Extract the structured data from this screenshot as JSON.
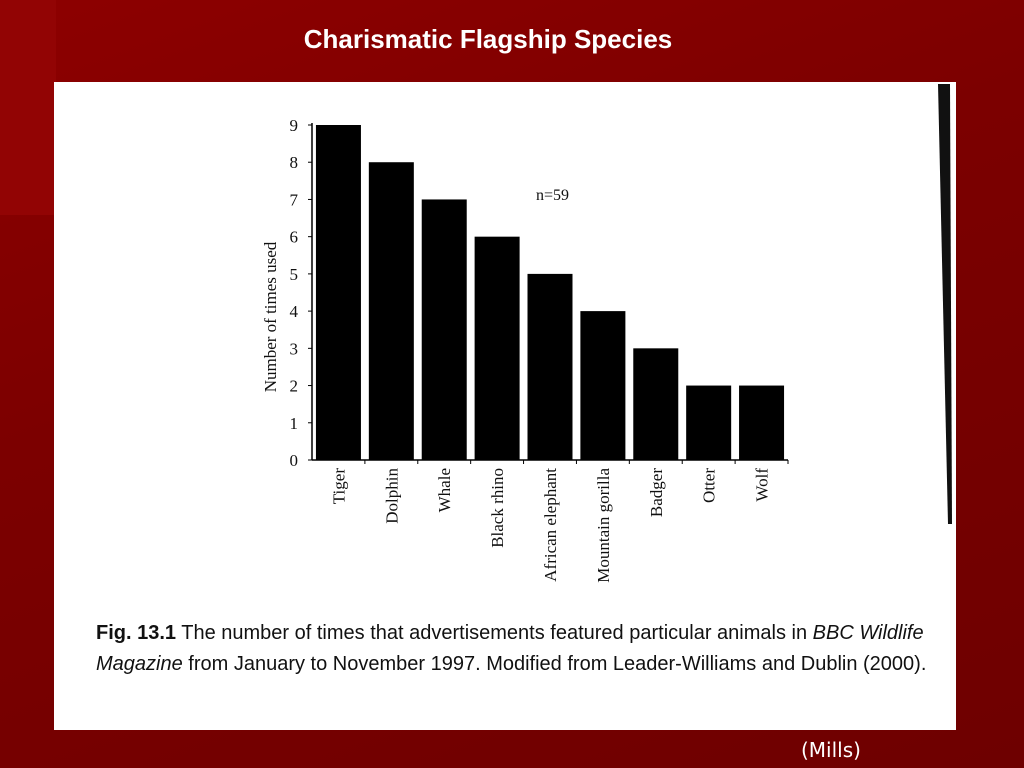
{
  "slide": {
    "title": "Charismatic Flagship Species",
    "attribution": "(Mills)"
  },
  "caption": {
    "label": "Fig. 13.1",
    "text_before": "The number of times that advertisements featured particular animals in",
    "italic_1": "BBC Wildlife Magazine",
    "text_after": "from January to November 1997. Modified from Leader-Williams and Dublin (2000)."
  },
  "colors": {
    "background": "#7a0000",
    "bars": "#000000",
    "card": "#ffffff"
  },
  "chart_data": {
    "type": "bar",
    "categories": [
      "Tiger",
      "Dolphin",
      "Whale",
      "Black rhino",
      "African elephant",
      "Mountain gorilla",
      "Badger",
      "Otter",
      "Wolf"
    ],
    "values": [
      9,
      8,
      7,
      6,
      5,
      4,
      3,
      2,
      2
    ],
    "ylabel": "Number of times used",
    "xlabel": "",
    "ylim": [
      0,
      9
    ],
    "yticks": [
      0,
      1,
      2,
      3,
      4,
      5,
      6,
      7,
      8,
      9
    ],
    "annotation": "n=59",
    "grid": false,
    "legend": "none"
  }
}
